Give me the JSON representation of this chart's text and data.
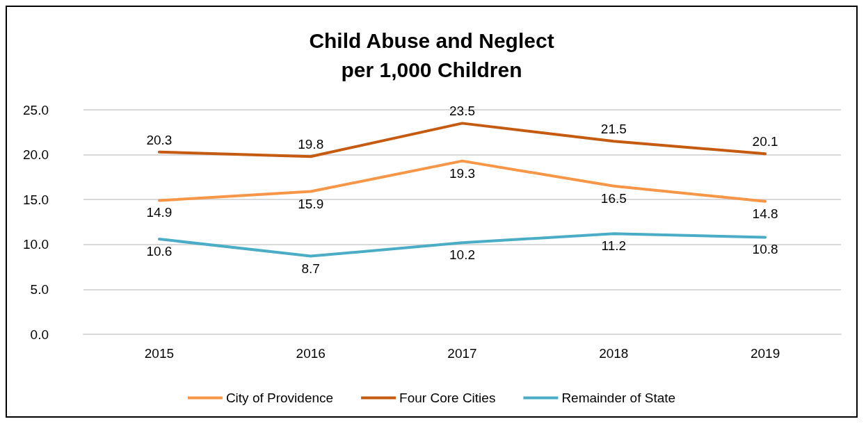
{
  "chart_data": {
    "type": "line",
    "title": "Child Abuse and Neglect\nper 1,000 Children",
    "categories": [
      "2015",
      "2016",
      "2017",
      "2018",
      "2019"
    ],
    "series": [
      {
        "name": "City of Providence",
        "color": "#f79646",
        "values": [
          14.9,
          15.9,
          19.3,
          16.5,
          14.8
        ]
      },
      {
        "name": "Four Core Cities",
        "color": "#c55a11",
        "values": [
          20.3,
          19.8,
          23.5,
          21.5,
          20.1
        ]
      },
      {
        "name": "Remainder of State",
        "color": "#4bacc6",
        "values": [
          10.6,
          8.7,
          10.2,
          11.2,
          10.8
        ]
      }
    ],
    "ylim": [
      0,
      25
    ],
    "yticks": [
      {
        "value": 0,
        "label": "0.0"
      },
      {
        "value": 5,
        "label": "5.0"
      },
      {
        "value": 10,
        "label": "10.0"
      },
      {
        "value": 15,
        "label": "15.0"
      },
      {
        "value": 20,
        "label": "20.0"
      },
      {
        "value": 25,
        "label": "25.0"
      }
    ],
    "grid": "y",
    "legend": "bottom",
    "marker": "none",
    "line_style": "solid",
    "data_labels": true
  }
}
